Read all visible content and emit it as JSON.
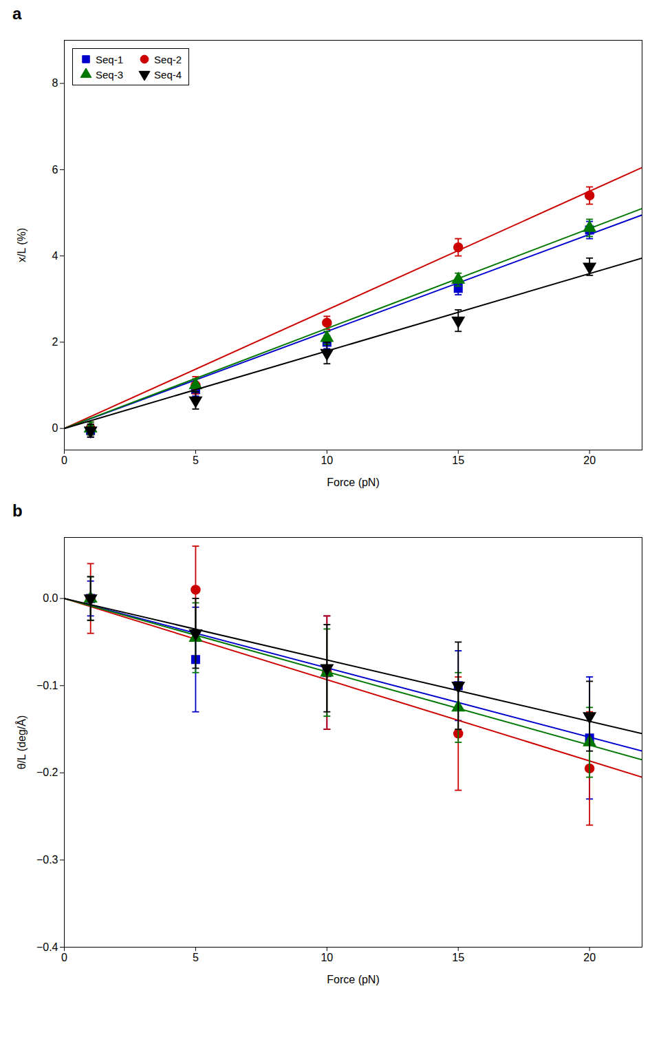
{
  "chart_data": [
    {
      "type": "scatter",
      "title": "a",
      "xlabel": "Force (pN)",
      "ylabel": "x/L (%)",
      "xlim": [
        0,
        22
      ],
      "ylim": [
        -0.5,
        9
      ],
      "xticks": [
        0,
        5,
        10,
        15,
        20
      ],
      "yticks": [
        0,
        2,
        4,
        6,
        8
      ],
      "legend": "upper left",
      "series": [
        {
          "name": "Seq-1",
          "color": "#0000cc",
          "marker": "square",
          "x": [
            1,
            5,
            10,
            15,
            20
          ],
          "values": [
            -0.05,
            0.9,
            2.0,
            3.25,
            4.6
          ],
          "yerr": [
            0.15,
            0.15,
            0.15,
            0.15,
            0.2
          ],
          "fit_x": [
            0,
            22
          ],
          "fit_y": [
            0.0,
            4.95
          ]
        },
        {
          "name": "Seq-2",
          "color": "#cc0000",
          "marker": "circle",
          "x": [
            1,
            5,
            10,
            15,
            20
          ],
          "values": [
            0.0,
            1.0,
            2.45,
            4.2,
            5.4
          ],
          "yerr": [
            0.15,
            0.2,
            0.15,
            0.2,
            0.2
          ],
          "fit_x": [
            0,
            22
          ],
          "fit_y": [
            0.0,
            6.05
          ]
        },
        {
          "name": "Seq-3",
          "color": "#007700",
          "marker": "triangle-up",
          "x": [
            1,
            5,
            10,
            15,
            20
          ],
          "values": [
            0.0,
            1.0,
            2.1,
            3.45,
            4.65
          ],
          "yerr": [
            0.15,
            0.15,
            0.15,
            0.15,
            0.2
          ],
          "fit_x": [
            0,
            22
          ],
          "fit_y": [
            0.0,
            5.1
          ]
        },
        {
          "name": "Seq-4",
          "color": "#000000",
          "marker": "triangle-down",
          "x": [
            1,
            5,
            10,
            15,
            20
          ],
          "values": [
            -0.05,
            0.65,
            1.75,
            2.5,
            3.75
          ],
          "yerr": [
            0.15,
            0.2,
            0.25,
            0.25,
            0.2
          ],
          "fit_x": [
            0,
            22
          ],
          "fit_y": [
            0.0,
            3.95
          ]
        }
      ]
    },
    {
      "type": "scatter",
      "title": "b",
      "xlabel": "Force (pN)",
      "ylabel": "θ/L (deg/Å)",
      "xlim": [
        0,
        22
      ],
      "ylim": [
        -0.4,
        0.07
      ],
      "xticks": [
        0,
        5,
        10,
        15,
        20
      ],
      "yticks": [
        {
          "value": 0.0,
          "label": "0.0"
        },
        {
          "value": -0.1,
          "label": "−0.1"
        },
        {
          "value": -0.2,
          "label": "−0.2"
        },
        {
          "value": -0.3,
          "label": "−0.3"
        },
        {
          "value": -0.4,
          "label": "−0.4"
        }
      ],
      "series": [
        {
          "name": "Seq-1",
          "color": "#0000cc",
          "marker": "square",
          "x": [
            1,
            5,
            10,
            15,
            20
          ],
          "values": [
            0.0,
            -0.07,
            -0.085,
            -0.1,
            -0.16
          ],
          "yerr": [
            0.02,
            0.06,
            0.065,
            0.04,
            0.07
          ],
          "fit_x": [
            0,
            22
          ],
          "fit_y": [
            0.0,
            -0.175
          ]
        },
        {
          "name": "Seq-2",
          "color": "#cc0000",
          "marker": "circle",
          "x": [
            1,
            5,
            10,
            15,
            20
          ],
          "values": [
            0.0,
            0.01,
            -0.085,
            -0.155,
            -0.195
          ],
          "yerr": [
            0.04,
            0.05,
            0.065,
            0.065,
            0.065
          ],
          "fit_x": [
            0,
            22
          ],
          "fit_y": [
            0.0,
            -0.205
          ]
        },
        {
          "name": "Seq-3",
          "color": "#007700",
          "marker": "triangle-up",
          "x": [
            1,
            5,
            10,
            15,
            20
          ],
          "values": [
            0.0,
            -0.045,
            -0.085,
            -0.125,
            -0.165
          ],
          "yerr": [
            0.025,
            0.04,
            0.05,
            0.04,
            0.04
          ],
          "fit_x": [
            0,
            22
          ],
          "fit_y": [
            0.0,
            -0.185
          ]
        },
        {
          "name": "Seq-4",
          "color": "#000000",
          "marker": "triangle-down",
          "x": [
            1,
            5,
            10,
            15,
            20
          ],
          "values": [
            0.0,
            -0.04,
            -0.08,
            -0.1,
            -0.135
          ],
          "yerr": [
            0.025,
            0.04,
            0.05,
            0.05,
            0.04
          ],
          "fit_x": [
            0,
            22
          ],
          "fit_y": [
            0.0,
            -0.155
          ]
        }
      ]
    }
  ]
}
